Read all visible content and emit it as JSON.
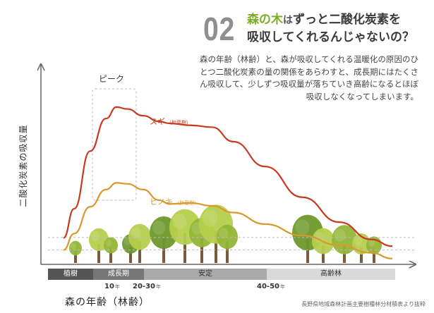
{
  "header": {
    "number": "02",
    "headline_part1_green": "森の木",
    "headline_part1_small": "は",
    "headline_part1_rest": "ずっと二酸化炭素を",
    "headline_part2": "吸収してくれるんじゃないの？"
  },
  "description": "森の年齢（林齢）と、森が吸収してくれる温暖化の原因のひとつ二酸化炭素の量の関係をあらわすと、成長期にはたくさん吸収して、少しずつ吸収量が落ちていき高齢になるとほぼ吸収しなくなってしまいます。",
  "chart_data": {
    "type": "line",
    "title": "",
    "xlabel": "森の年齢（林齢）",
    "ylabel": "二酸化炭素の吸収量",
    "peak_label": "ピーク",
    "x_ticks": [
      {
        "value": 10,
        "label": "10",
        "unit": "年"
      },
      {
        "value": 25,
        "label": "20-30",
        "unit": "年"
      },
      {
        "value": 45,
        "label": "40-50",
        "unit": "年"
      }
    ],
    "phases": [
      {
        "label": "植樹",
        "color": "#555555",
        "text_color": "#ffffff"
      },
      {
        "label": "成長期",
        "color": "#777777",
        "text_color": "#ffffff"
      },
      {
        "label": "安定",
        "color": "#aaaaaa",
        "text_color": "#333333"
      },
      {
        "label": "高齢林",
        "color": "#d9d9d9",
        "text_color": "#333333"
      }
    ],
    "series": [
      {
        "name": "スギ",
        "note": "（針葉樹）",
        "color": "#c8391f",
        "x": [
          0,
          2,
          5,
          8,
          10,
          12,
          15,
          18,
          20,
          24,
          28,
          32,
          38,
          45,
          52,
          58,
          62
        ],
        "y": [
          0.98,
          2.5,
          5.5,
          7.2,
          7.8,
          7.7,
          7.35,
          7.05,
          6.95,
          6.85,
          6.75,
          6.0,
          4.7,
          3.1,
          1.8,
          0.9,
          0.55
        ]
      },
      {
        "name": "ヒノキ",
        "note": "（針葉樹）",
        "color": "#d9982e",
        "x": [
          0,
          2,
          5,
          8,
          10,
          12,
          15,
          18,
          20,
          24,
          28,
          32,
          38,
          45,
          52,
          58,
          62
        ],
        "y": [
          0.35,
          1.2,
          2.6,
          3.5,
          3.85,
          3.8,
          3.5,
          2.95,
          2.75,
          2.8,
          2.65,
          2.3,
          1.7,
          1.1,
          0.6,
          0.2,
          -0.1
        ]
      }
    ],
    "reference_levels": [
      1.0,
      0.35
    ],
    "xlim": [
      0,
      62
    ],
    "ylim": [
      -0.4,
      10
    ],
    "grid": false
  },
  "source": "長野県地域森林計画主要樹種林分材積表より抜粋",
  "colors": {
    "tree_light": "#b5cf4b",
    "tree_mid": "#93b637",
    "tree_dark": "#6e9a2b",
    "trunk": "#7a5a3a",
    "axis": "#666666"
  }
}
